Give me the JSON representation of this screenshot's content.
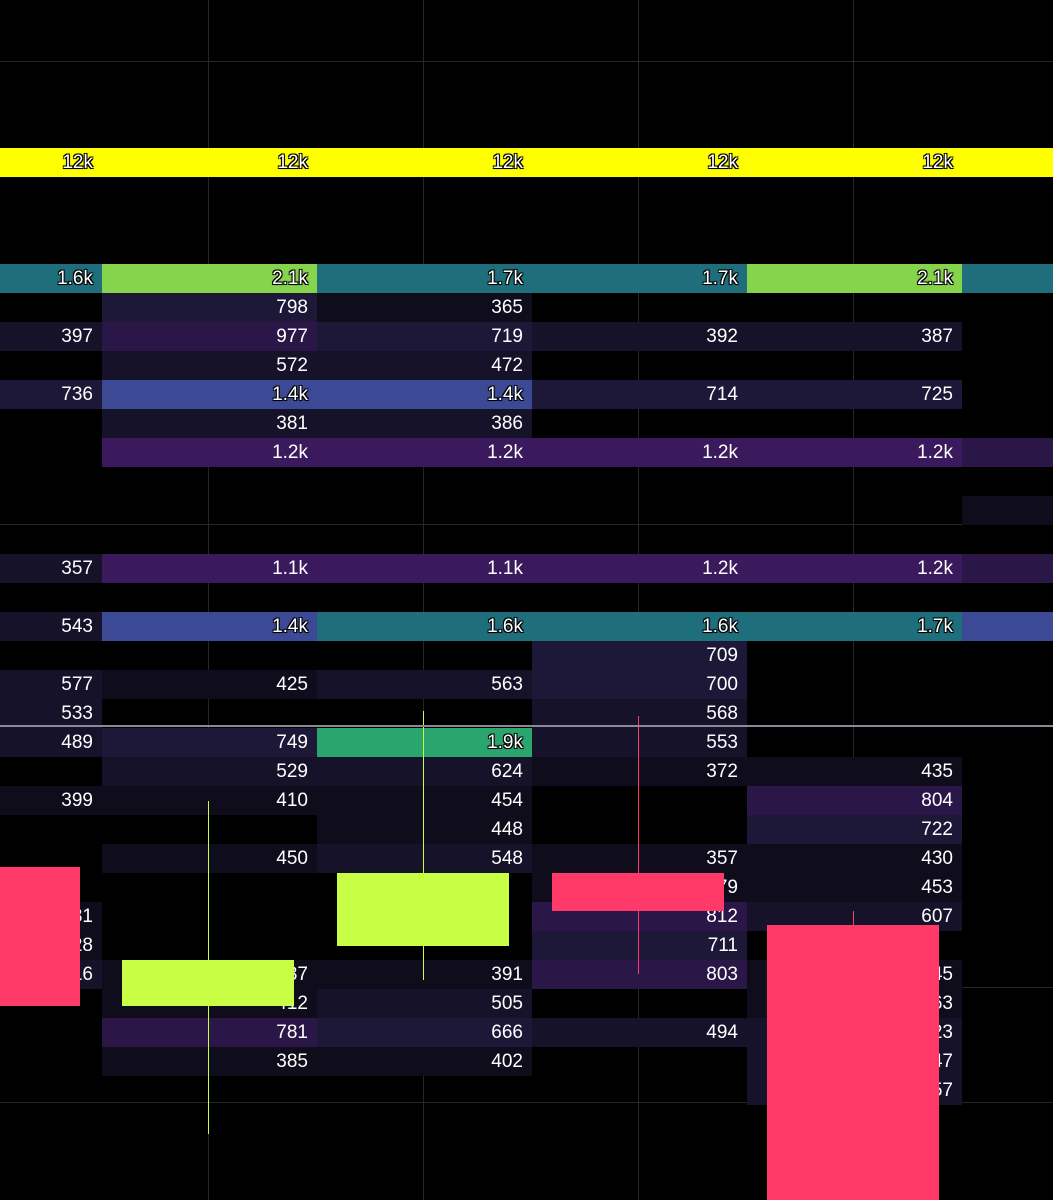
{
  "chart_data": {
    "type": "heatmap",
    "description_colors": {
      "yellow": "#ffff00",
      "green": "#86d34c",
      "teal": "#1e6e7c",
      "blue": "#3c4a96",
      "emerald": "#2aa56e",
      "purple_hi": "#4a1b6e",
      "purple_mid": "#3a1a5c",
      "purple_lo": "#2a1748",
      "dark1": "#1e1838",
      "dark2": "#161229",
      "dark3": "#0f0c1c",
      "candle_up": "#c8ff45",
      "candle_down": "#ff3a68",
      "price_line": "#8a8a96"
    },
    "level_rows": 32,
    "time_columns": 10,
    "rows": [
      {
        "level": 4,
        "cells": [
          {
            "c": 0,
            "v": "12k",
            "col": "yellow"
          },
          {
            "c": 1,
            "v": "",
            "col": "yellow"
          },
          {
            "c": 2,
            "v": "12k",
            "col": "yellow"
          },
          {
            "c": 3,
            "v": "",
            "col": "yellow"
          },
          {
            "c": 4,
            "v": "12k",
            "col": "yellow"
          },
          {
            "c": 5,
            "v": "",
            "col": "yellow"
          },
          {
            "c": 6,
            "v": "12k",
            "col": "yellow"
          },
          {
            "c": 7,
            "v": "",
            "col": "yellow"
          },
          {
            "c": 8,
            "v": "12k",
            "col": "yellow"
          },
          {
            "c": 9,
            "v": "",
            "col": "yellow"
          }
        ]
      },
      {
        "level": 8,
        "cells": [
          {
            "c": 0,
            "v": "1.6k",
            "col": "teal"
          },
          {
            "c": 1,
            "v": "",
            "col": "green"
          },
          {
            "c": 2,
            "v": "2.1k",
            "col": "green"
          },
          {
            "c": 3,
            "v": "",
            "col": "teal"
          },
          {
            "c": 4,
            "v": "1.7k",
            "col": "teal"
          },
          {
            "c": 5,
            "v": "",
            "col": "teal"
          },
          {
            "c": 6,
            "v": "1.7k",
            "col": "teal"
          },
          {
            "c": 7,
            "v": "",
            "col": "green"
          },
          {
            "c": 8,
            "v": "2.1k",
            "col": "green"
          },
          {
            "c": 9,
            "v": "",
            "col": "teal"
          }
        ]
      },
      {
        "level": 9,
        "cells": [
          {
            "c": 1,
            "v": "",
            "col": "dark1"
          },
          {
            "c": 2,
            "v": "798",
            "col": "dark1"
          },
          {
            "c": 3,
            "v": "",
            "col": "dark3"
          },
          {
            "c": 4,
            "v": "365",
            "col": "dark3"
          }
        ]
      },
      {
        "level": 10,
        "cells": [
          {
            "c": 0,
            "v": "397",
            "col": "dark2"
          },
          {
            "c": 1,
            "v": "",
            "col": "purple_lo"
          },
          {
            "c": 2,
            "v": "977",
            "col": "purple_lo"
          },
          {
            "c": 3,
            "v": "",
            "col": "dark1"
          },
          {
            "c": 4,
            "v": "719",
            "col": "dark1"
          },
          {
            "c": 5,
            "v": "",
            "col": "dark2"
          },
          {
            "c": 6,
            "v": "392",
            "col": "dark2"
          },
          {
            "c": 7,
            "v": "",
            "col": "dark2"
          },
          {
            "c": 8,
            "v": "387",
            "col": "dark2"
          }
        ]
      },
      {
        "level": 11,
        "cells": [
          {
            "c": 1,
            "v": "",
            "col": "dark2"
          },
          {
            "c": 2,
            "v": "572",
            "col": "dark2"
          },
          {
            "c": 3,
            "v": "",
            "col": "dark2"
          },
          {
            "c": 4,
            "v": "472",
            "col": "dark2"
          }
        ]
      },
      {
        "level": 12,
        "cells": [
          {
            "c": 0,
            "v": "736",
            "col": "dark1"
          },
          {
            "c": 1,
            "v": "",
            "col": "blue"
          },
          {
            "c": 2,
            "v": "1.4k",
            "col": "blue"
          },
          {
            "c": 3,
            "v": "",
            "col": "blue"
          },
          {
            "c": 4,
            "v": "1.4k",
            "col": "blue"
          },
          {
            "c": 5,
            "v": "",
            "col": "dark1"
          },
          {
            "c": 6,
            "v": "714",
            "col": "dark1"
          },
          {
            "c": 7,
            "v": "",
            "col": "dark1"
          },
          {
            "c": 8,
            "v": "725",
            "col": "dark1"
          }
        ]
      },
      {
        "level": 13,
        "cells": [
          {
            "c": 1,
            "v": "",
            "col": "dark2"
          },
          {
            "c": 2,
            "v": "381",
            "col": "dark2"
          },
          {
            "c": 3,
            "v": "",
            "col": "dark2"
          },
          {
            "c": 4,
            "v": "386",
            "col": "dark2"
          }
        ]
      },
      {
        "level": 14,
        "cells": [
          {
            "c": 1,
            "v": "",
            "col": "purple_mid"
          },
          {
            "c": 2,
            "v": "1.2k",
            "col": "purple_mid"
          },
          {
            "c": 3,
            "v": "",
            "col": "purple_mid"
          },
          {
            "c": 4,
            "v": "1.2k",
            "col": "purple_mid"
          },
          {
            "c": 5,
            "v": "",
            "col": "purple_mid"
          },
          {
            "c": 6,
            "v": "1.2k",
            "col": "purple_mid"
          },
          {
            "c": 7,
            "v": "",
            "col": "purple_mid"
          },
          {
            "c": 8,
            "v": "1.2k",
            "col": "purple_mid"
          },
          {
            "c": 9,
            "v": "",
            "col": "purple_lo"
          }
        ]
      },
      {
        "level": 16,
        "cells": [
          {
            "c": 9,
            "v": "",
            "col": "dark3"
          }
        ]
      },
      {
        "level": 18,
        "cells": [
          {
            "c": 0,
            "v": "357",
            "col": "dark2"
          },
          {
            "c": 1,
            "v": "",
            "col": "purple_mid"
          },
          {
            "c": 2,
            "v": "1.1k",
            "col": "purple_mid"
          },
          {
            "c": 3,
            "v": "",
            "col": "purple_mid"
          },
          {
            "c": 4,
            "v": "1.1k",
            "col": "purple_mid"
          },
          {
            "c": 5,
            "v": "",
            "col": "purple_mid"
          },
          {
            "c": 6,
            "v": "1.2k",
            "col": "purple_mid"
          },
          {
            "c": 7,
            "v": "",
            "col": "purple_mid"
          },
          {
            "c": 8,
            "v": "1.2k",
            "col": "purple_mid"
          },
          {
            "c": 9,
            "v": "",
            "col": "purple_lo"
          }
        ]
      },
      {
        "level": 20,
        "cells": [
          {
            "c": 0,
            "v": "543",
            "col": "dark2"
          },
          {
            "c": 1,
            "v": "",
            "col": "blue"
          },
          {
            "c": 2,
            "v": "1.4k",
            "col": "blue"
          },
          {
            "c": 3,
            "v": "",
            "col": "teal"
          },
          {
            "c": 4,
            "v": "1.6k",
            "col": "teal"
          },
          {
            "c": 5,
            "v": "",
            "col": "teal"
          },
          {
            "c": 6,
            "v": "1.6k",
            "col": "teal"
          },
          {
            "c": 7,
            "v": "",
            "col": "teal"
          },
          {
            "c": 8,
            "v": "1.7k",
            "col": "teal"
          },
          {
            "c": 9,
            "v": "",
            "col": "blue"
          }
        ]
      },
      {
        "level": 21,
        "cells": [
          {
            "c": 5,
            "v": "",
            "col": "dark1"
          },
          {
            "c": 6,
            "v": "709",
            "col": "dark1"
          }
        ]
      },
      {
        "level": 22,
        "cells": [
          {
            "c": 0,
            "v": "577",
            "col": "dark2"
          },
          {
            "c": 1,
            "v": "",
            "col": "dark3"
          },
          {
            "c": 2,
            "v": "425",
            "col": "dark3"
          },
          {
            "c": 3,
            "v": "",
            "col": "dark2"
          },
          {
            "c": 4,
            "v": "563",
            "col": "dark2"
          },
          {
            "c": 5,
            "v": "",
            "col": "dark1"
          },
          {
            "c": 6,
            "v": "700",
            "col": "dark1"
          }
        ]
      },
      {
        "level": 23,
        "cells": [
          {
            "c": 0,
            "v": "533",
            "col": "dark2"
          },
          {
            "c": 5,
            "v": "",
            "col": "dark2"
          },
          {
            "c": 6,
            "v": "568",
            "col": "dark2"
          }
        ]
      },
      {
        "level": 24,
        "cells": [
          {
            "c": 0,
            "v": "489",
            "col": "dark2"
          },
          {
            "c": 1,
            "v": "",
            "col": "dark1"
          },
          {
            "c": 2,
            "v": "749",
            "col": "dark1"
          },
          {
            "c": 3,
            "v": "",
            "col": "emerald"
          },
          {
            "c": 4,
            "v": "1.9k",
            "col": "emerald"
          },
          {
            "c": 5,
            "v": "",
            "col": "dark2"
          },
          {
            "c": 6,
            "v": "553",
            "col": "dark2"
          }
        ]
      },
      {
        "level": 25,
        "cells": [
          {
            "c": 1,
            "v": "",
            "col": "dark2"
          },
          {
            "c": 2,
            "v": "529",
            "col": "dark2"
          },
          {
            "c": 3,
            "v": "",
            "col": "dark2"
          },
          {
            "c": 4,
            "v": "624",
            "col": "dark2"
          },
          {
            "c": 5,
            "v": "",
            "col": "dark3"
          },
          {
            "c": 6,
            "v": "372",
            "col": "dark3"
          },
          {
            "c": 7,
            "v": "",
            "col": "dark3"
          },
          {
            "c": 8,
            "v": "435",
            "col": "dark3"
          }
        ]
      },
      {
        "level": 26,
        "cells": [
          {
            "c": 0,
            "v": "399",
            "col": "dark3"
          },
          {
            "c": 1,
            "v": "",
            "col": "dark3"
          },
          {
            "c": 2,
            "v": "410",
            "col": "dark3"
          },
          {
            "c": 3,
            "v": "",
            "col": "dark3"
          },
          {
            "c": 4,
            "v": "454",
            "col": "dark3"
          },
          {
            "c": 7,
            "v": "",
            "col": "purple_lo"
          },
          {
            "c": 8,
            "v": "804",
            "col": "purple_lo"
          }
        ]
      },
      {
        "level": 27,
        "cells": [
          {
            "c": 3,
            "v": "",
            "col": "dark3"
          },
          {
            "c": 4,
            "v": "448",
            "col": "dark3"
          },
          {
            "c": 7,
            "v": "",
            "col": "dark1"
          },
          {
            "c": 8,
            "v": "722",
            "col": "dark1"
          }
        ]
      },
      {
        "level": 28,
        "cells": [
          {
            "c": 1,
            "v": "",
            "col": "dark3"
          },
          {
            "c": 2,
            "v": "450",
            "col": "dark3"
          },
          {
            "c": 3,
            "v": "",
            "col": "dark2"
          },
          {
            "c": 4,
            "v": "548",
            "col": "dark2"
          },
          {
            "c": 5,
            "v": "",
            "col": "dark3"
          },
          {
            "c": 6,
            "v": "357",
            "col": "dark3"
          },
          {
            "c": 7,
            "v": "",
            "col": "dark3"
          },
          {
            "c": 8,
            "v": "430",
            "col": "dark3"
          }
        ]
      },
      {
        "level": 29,
        "cells": [
          {
            "c": 5,
            "v": "",
            "col": "dark3"
          },
          {
            "c": 6,
            "v": "479",
            "col": "dark3"
          },
          {
            "c": 7,
            "v": "",
            "col": "dark3"
          },
          {
            "c": 8,
            "v": "453",
            "col": "dark3"
          }
        ]
      },
      {
        "level": 30,
        "cells": [
          {
            "c": 0,
            "v": "431",
            "col": "dark3"
          },
          {
            "c": 5,
            "v": "",
            "col": "purple_lo"
          },
          {
            "c": 6,
            "v": "812",
            "col": "purple_lo"
          },
          {
            "c": 7,
            "v": "",
            "col": "dark2"
          },
          {
            "c": 8,
            "v": "607",
            "col": "dark2"
          }
        ]
      },
      {
        "level": 31,
        "cells": [
          {
            "c": 0,
            "v": "428",
            "col": "dark3"
          },
          {
            "c": 5,
            "v": "",
            "col": "dark1"
          },
          {
            "c": 6,
            "v": "711",
            "col": "dark1"
          }
        ]
      },
      {
        "level": 32,
        "cells": [
          {
            "c": 0,
            "v": "616",
            "col": "dark2"
          },
          {
            "c": 1,
            "v": "",
            "col": "dark3"
          },
          {
            "c": 2,
            "v": "437",
            "col": "dark3"
          },
          {
            "c": 3,
            "v": "",
            "col": "dark3"
          },
          {
            "c": 4,
            "v": "391",
            "col": "dark3"
          },
          {
            "c": 5,
            "v": "",
            "col": "purple_lo"
          },
          {
            "c": 6,
            "v": "803",
            "col": "purple_lo"
          },
          {
            "c": 7,
            "v": "",
            "col": "dark3"
          },
          {
            "c": 8,
            "v": "445",
            "col": "dark3"
          }
        ]
      },
      {
        "level": 33,
        "cells": [
          {
            "c": 1,
            "v": "",
            "col": "dark3"
          },
          {
            "c": 2,
            "v": "412",
            "col": "dark3"
          },
          {
            "c": 3,
            "v": "",
            "col": "dark2"
          },
          {
            "c": 4,
            "v": "505",
            "col": "dark2"
          },
          {
            "c": 7,
            "v": "",
            "col": "dark3"
          },
          {
            "c": 8,
            "v": "463",
            "col": "dark3"
          }
        ]
      },
      {
        "level": 34,
        "cells": [
          {
            "c": 1,
            "v": "",
            "col": "purple_lo"
          },
          {
            "c": 2,
            "v": "781",
            "col": "purple_lo"
          },
          {
            "c": 3,
            "v": "",
            "col": "dark1"
          },
          {
            "c": 4,
            "v": "666",
            "col": "dark1"
          },
          {
            "c": 5,
            "v": "",
            "col": "dark2"
          },
          {
            "c": 6,
            "v": "494",
            "col": "dark2"
          },
          {
            "c": 7,
            "v": "",
            "col": "dark2"
          },
          {
            "c": 8,
            "v": "523",
            "col": "dark2"
          }
        ]
      },
      {
        "level": 35,
        "cells": [
          {
            "c": 1,
            "v": "",
            "col": "dark3"
          },
          {
            "c": 2,
            "v": "385",
            "col": "dark3"
          },
          {
            "c": 3,
            "v": "",
            "col": "dark3"
          },
          {
            "c": 4,
            "v": "402",
            "col": "dark3"
          },
          {
            "c": 7,
            "v": "",
            "col": "dark2"
          },
          {
            "c": 8,
            "v": "547",
            "col": "dark2"
          }
        ]
      },
      {
        "level": 36,
        "cells": [
          {
            "c": 7,
            "v": "",
            "col": "dark2"
          },
          {
            "c": 8,
            "v": "557",
            "col": "dark2"
          }
        ]
      }
    ],
    "candles": [
      {
        "dir": "down",
        "open_level": 28.8,
        "close_level": 33.6,
        "high_level": 28.8,
        "low_level": 33.6,
        "slot": 0
      },
      {
        "dir": "up",
        "open_level": 33.6,
        "close_level": 32.0,
        "high_level": 26.5,
        "low_level": 38.0,
        "slot": 1
      },
      {
        "dir": "up",
        "open_level": 31.5,
        "close_level": 29.0,
        "high_level": 23.4,
        "low_level": 32.7,
        "slot": 2
      },
      {
        "dir": "down",
        "open_level": 29.0,
        "close_level": 30.3,
        "high_level": 23.6,
        "low_level": 32.5,
        "slot": 3
      },
      {
        "dir": "down",
        "open_level": 30.8,
        "close_level": 42.0,
        "high_level": 30.3,
        "low_level": 42.0,
        "slot": 4
      }
    ],
    "price_line_level": 23.9
  }
}
